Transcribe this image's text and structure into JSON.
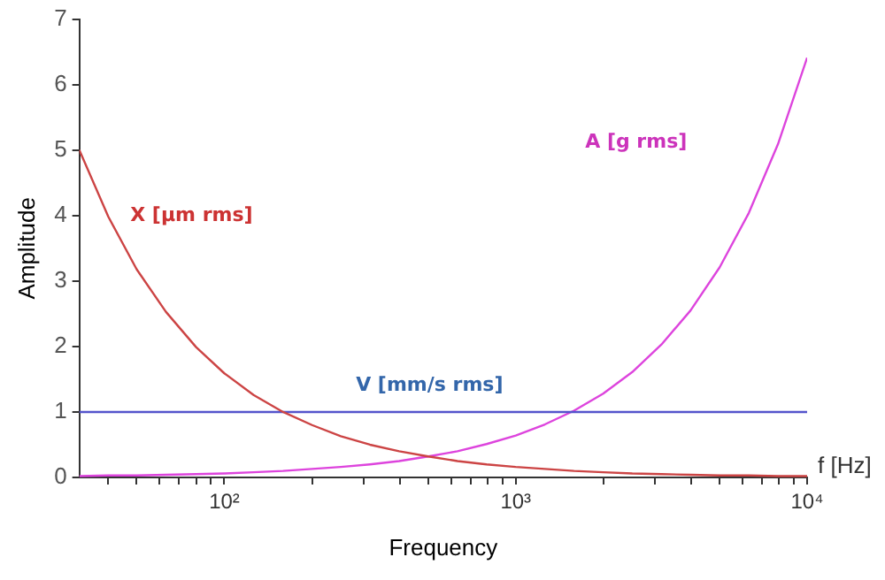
{
  "chart_data": {
    "type": "line",
    "xlabel": "Frequency",
    "ylabel": "Amplitude",
    "annotations": [
      "f [Hz]"
    ],
    "log": "x",
    "grid": false,
    "legend": false,
    "marker": "none",
    "line_style": "solid",
    "xlim": [
      31.8,
      10000
    ],
    "ylim": [
      0,
      7
    ],
    "yticks": [
      0,
      1,
      2,
      3,
      4,
      5,
      6,
      7
    ],
    "xticks": [
      {
        "value": 40,
        "label": null
      },
      {
        "value": 50,
        "label": null
      },
      {
        "value": 60,
        "label": null
      },
      {
        "value": 70,
        "label": null
      },
      {
        "value": 80,
        "label": null
      },
      {
        "value": 90,
        "label": null
      },
      {
        "value": 100,
        "label": "10²"
      },
      {
        "value": 200,
        "label": null
      },
      {
        "value": 300,
        "label": null
      },
      {
        "value": 400,
        "label": null
      },
      {
        "value": 500,
        "label": null
      },
      {
        "value": 600,
        "label": null
      },
      {
        "value": 700,
        "label": null
      },
      {
        "value": 800,
        "label": null
      },
      {
        "value": 900,
        "label": null
      },
      {
        "value": 1000,
        "label": "10³"
      },
      {
        "value": 2000,
        "label": null
      },
      {
        "value": 3000,
        "label": null
      },
      {
        "value": 4000,
        "label": null
      },
      {
        "value": 5000,
        "label": null
      },
      {
        "value": 6000,
        "label": null
      },
      {
        "value": 7000,
        "label": null
      },
      {
        "value": 8000,
        "label": null
      },
      {
        "value": 9000,
        "label": null
      },
      {
        "value": 10000,
        "label": "10⁴"
      }
    ],
    "x": [
      31.8,
      40,
      50,
      63,
      80,
      100,
      126,
      159,
      200,
      251,
      316,
      398,
      501,
      631,
      794,
      1000,
      1259,
      1585,
      1995,
      2512,
      3162,
      3981,
      5012,
      6310,
      7943,
      10000
    ],
    "series": [
      {
        "name": "X [µm rms]",
        "color": "#cc4444",
        "values": [
          5.0,
          3.98,
          3.18,
          2.53,
          1.99,
          1.59,
          1.26,
          1.0,
          0.8,
          0.63,
          0.5,
          0.4,
          0.32,
          0.25,
          0.2,
          0.16,
          0.13,
          0.1,
          0.08,
          0.06,
          0.05,
          0.04,
          0.03,
          0.03,
          0.02,
          0.02
        ]
      },
      {
        "name": "V [mm/s rms]",
        "color": "#5555cc",
        "values": [
          1,
          1,
          1,
          1,
          1,
          1,
          1,
          1,
          1,
          1,
          1,
          1,
          1,
          1,
          1,
          1,
          1,
          1,
          1,
          1,
          1,
          1,
          1,
          1,
          1,
          1
        ]
      },
      {
        "name": "A [g rms]",
        "color": "#dd44dd",
        "values": [
          0.02,
          0.03,
          0.03,
          0.04,
          0.05,
          0.06,
          0.08,
          0.1,
          0.13,
          0.16,
          0.2,
          0.25,
          0.32,
          0.4,
          0.51,
          0.64,
          0.81,
          1.02,
          1.28,
          1.61,
          2.03,
          2.55,
          3.21,
          4.04,
          5.09,
          6.41
        ]
      }
    ]
  }
}
